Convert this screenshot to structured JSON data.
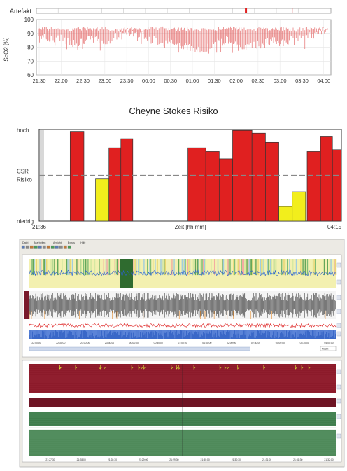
{
  "chart_data": [
    {
      "type": "line",
      "title": "",
      "artifact_label": "Artefakt",
      "artifact_marks": [
        0.85,
        0.87
      ],
      "ylabel": "SpO2 [%]",
      "ylim": [
        60,
        100
      ],
      "yticks": [
        60,
        70,
        80,
        90,
        100
      ],
      "xticks": [
        "21:30",
        "22:00",
        "22:30",
        "23:00",
        "23:30",
        "00:00",
        "00:30",
        "01:00",
        "01:30",
        "02:00",
        "02:30",
        "03:00",
        "03:30",
        "04:00"
      ],
      "series": [
        {
          "color": "#e05555",
          "x_start": "21:30",
          "x_end": "04:05",
          "upper": [
            95,
            95,
            95,
            94,
            95,
            95,
            95,
            94,
            95,
            94,
            95,
            95,
            95,
            94,
            95,
            94,
            95,
            95,
            95,
            94,
            95,
            94,
            95,
            94,
            95,
            94,
            95
          ],
          "lower": [
            86,
            82,
            84,
            80,
            82,
            83,
            80,
            85,
            88,
            87,
            84,
            80,
            82,
            78,
            75,
            76,
            80,
            83,
            76,
            78,
            79,
            82,
            80,
            85,
            84,
            88,
            90
          ]
        }
      ]
    },
    {
      "type": "bar",
      "title": "Cheyne Stokes Risiko",
      "xlabel": "Zeit [hh:mm]",
      "x_start_label": "21:36",
      "x_end_label": "04:15",
      "ylabels": [
        "hoch",
        "CSR Risiko",
        "niedrig"
      ],
      "threshold": 0.5,
      "bars": [
        {
          "x0": 0.09,
          "x1": 0.136,
          "value": 0.98,
          "color": "#e02020"
        },
        {
          "x0": 0.175,
          "x1": 0.22,
          "value": 0.46,
          "color": "#f2ee1c"
        },
        {
          "x0": 0.22,
          "x1": 0.26,
          "value": 0.8,
          "color": "#e02020"
        },
        {
          "x0": 0.26,
          "x1": 0.3,
          "value": 0.9,
          "color": "#e02020"
        },
        {
          "x0": 0.485,
          "x1": 0.545,
          "value": 0.8,
          "color": "#e02020"
        },
        {
          "x0": 0.545,
          "x1": 0.59,
          "value": 0.76,
          "color": "#e02020"
        },
        {
          "x0": 0.59,
          "x1": 0.635,
          "value": 0.68,
          "color": "#e02020"
        },
        {
          "x0": 0.635,
          "x1": 0.7,
          "value": 0.99,
          "color": "#e02020"
        },
        {
          "x0": 0.7,
          "x1": 0.745,
          "value": 0.96,
          "color": "#e02020"
        },
        {
          "x0": 0.745,
          "x1": 0.79,
          "value": 0.86,
          "color": "#e02020"
        },
        {
          "x0": 0.79,
          "x1": 0.835,
          "value": 0.16,
          "color": "#f2ee1c"
        },
        {
          "x0": 0.835,
          "x1": 0.88,
          "value": 0.32,
          "color": "#f2ee1c"
        },
        {
          "x0": 0.885,
          "x1": 0.93,
          "value": 0.76,
          "color": "#e02020"
        },
        {
          "x0": 0.93,
          "x1": 0.97,
          "value": 0.92,
          "color": "#e02020"
        },
        {
          "x0": 0.97,
          "x1": 1.0,
          "value": 0.78,
          "color": "#e02020"
        }
      ]
    }
  ],
  "software": {
    "menu": [
      "Datei",
      "Bearbeiten",
      "Ansicht",
      "Extras",
      "Hilfe"
    ],
    "zoom_select": "Nacht",
    "top_axis_times": [
      "22:00:00",
      "22:30:00",
      "23:00:00",
      "23:30:00",
      "00:00:00",
      "00:30:00",
      "01:00:00",
      "01:30:00",
      "02:00:00",
      "02:30:00",
      "03:00:00",
      "03:30:00",
      "04:00:00"
    ],
    "bottom_axis_times": [
      "21:27:30",
      "21:28:00",
      "21:28:30",
      "21:29:00",
      "21:29:30",
      "21:30:00",
      "21:30:30",
      "21:31:00",
      "21:31:30",
      "21:32:00"
    ],
    "colors": {
      "hr_bg": "#8c1a2a",
      "green_bg": "#3f7d4c",
      "blue_signal": "#2a5fd0",
      "red_signal": "#e03030"
    }
  }
}
